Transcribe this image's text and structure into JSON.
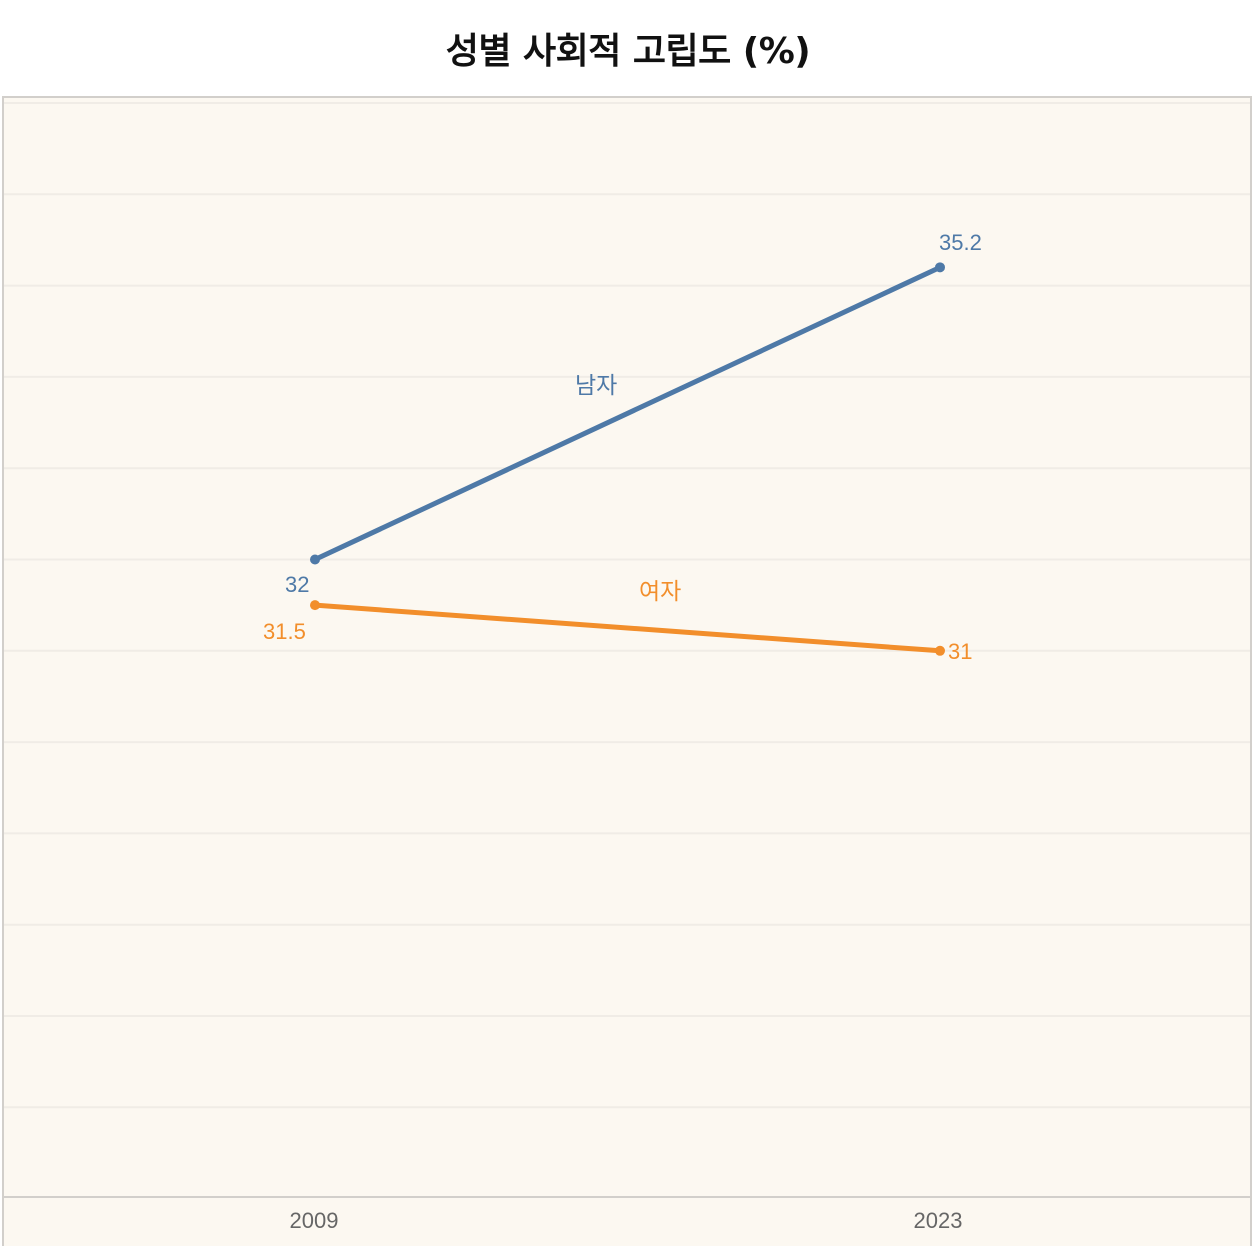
{
  "title": "성별 사회적 고립도 (%)",
  "colors": {
    "male": "#4e79a7",
    "female": "#f28e2b",
    "plot_background": "#fcf8f1",
    "gridline": "#f0ece6",
    "frame": "#d2cfcb",
    "axis_text": "#666666"
  },
  "x_axis": {
    "ticks": [
      "2009",
      "2023"
    ]
  },
  "series_labels": {
    "male": "남자",
    "female": "여자"
  },
  "value_labels": {
    "male_2009": "32",
    "male_2023": "35.2",
    "female_2009": "31.5",
    "female_2023": "31"
  },
  "chart_data": {
    "type": "line",
    "title": "성별 사회적 고립도 (%)",
    "xlabel": "",
    "ylabel": "",
    "categories": [
      "2009",
      "2023"
    ],
    "series": [
      {
        "name": "남자",
        "values": [
          32,
          35.2
        ],
        "color": "#4e79a7"
      },
      {
        "name": "여자",
        "values": [
          31.5,
          31
        ],
        "color": "#f28e2b"
      }
    ],
    "ylim": [
      25,
      37
    ],
    "grid": true,
    "y_gridlines": [
      26,
      27,
      28,
      29,
      30,
      31,
      32,
      33,
      34,
      35,
      36,
      37
    ],
    "legend": "inline labels on lines",
    "data_labels": true
  }
}
